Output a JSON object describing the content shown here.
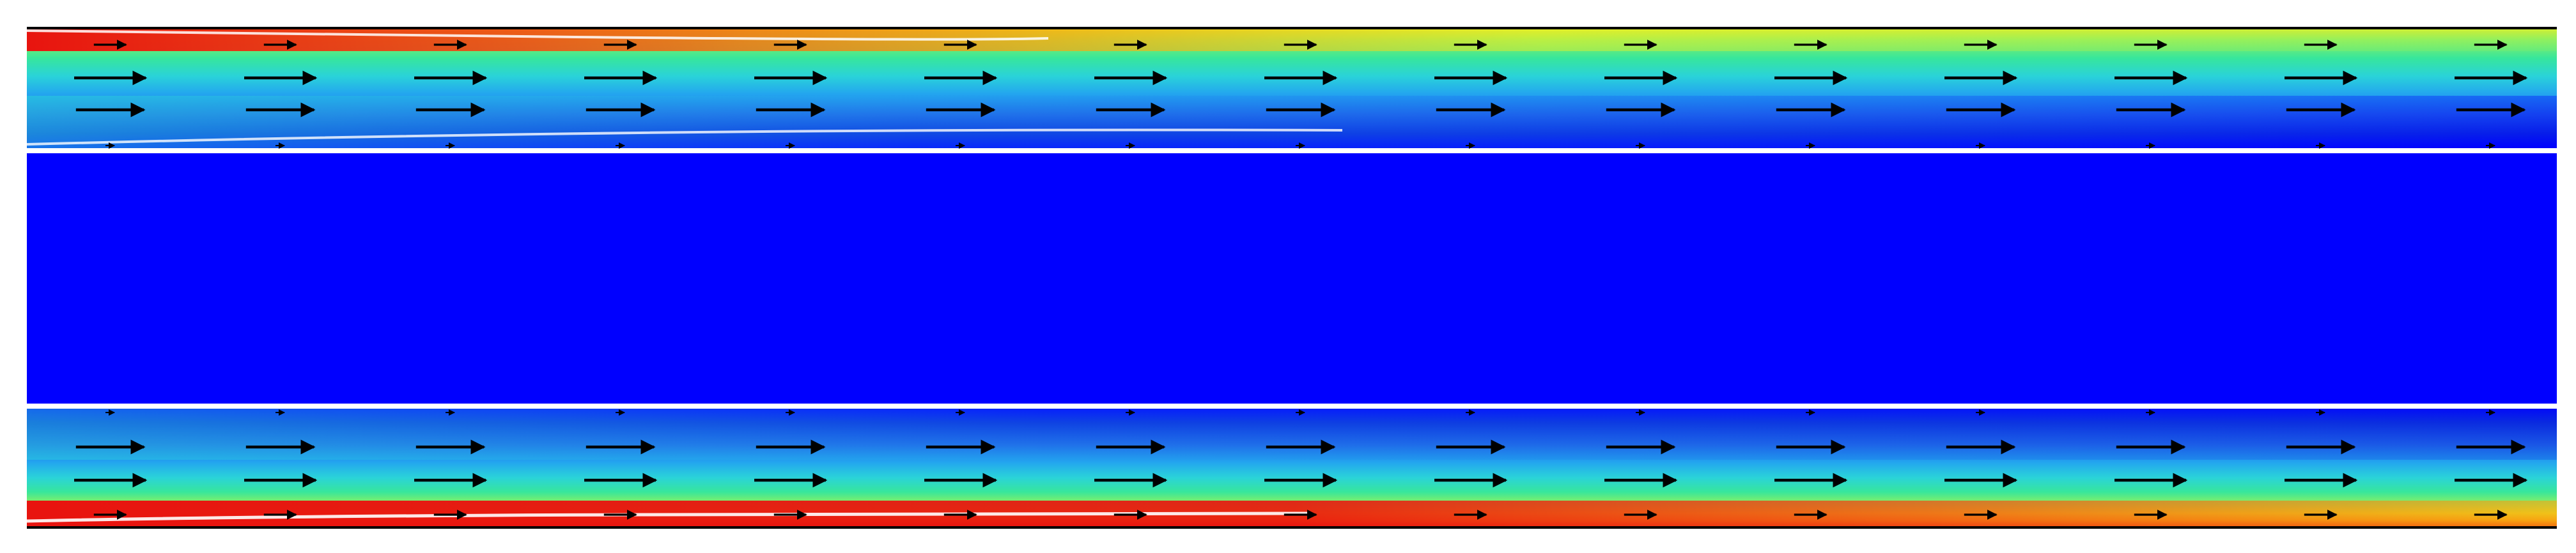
{
  "figure": {
    "kind": "flow-field-contour",
    "colormap": [
      "#0000ff",
      "#0a2bdf",
      "#1f63e8",
      "#23a5ef",
      "#2ad3d9",
      "#37e69c",
      "#8ef060",
      "#e6ee25",
      "#f7a511",
      "#f04e14",
      "#e8140f"
    ],
    "colors": {
      "wall": "#000000",
      "gap": "#ffffff",
      "core": "#0000ff",
      "arrow": "#000000"
    },
    "arrow_direction": "right"
  },
  "chart_data": {
    "type": "vector-field",
    "channels": [
      {
        "name": "top",
        "wall_side": "top",
        "wall_color_trend": [
          "#e8140f",
          "#f7a511",
          "#e6ee25",
          "#8ef060"
        ],
        "arrow_rows": [
          {
            "magnitude": 0.45
          },
          {
            "magnitude": 1.0
          },
          {
            "magnitude": 0.95
          },
          {
            "magnitude": 0.12
          }
        ]
      },
      {
        "name": "bottom",
        "wall_side": "bottom",
        "wall_color_trend": [
          "#e8140f",
          "#e8140f",
          "#f04e14",
          "#f7a511"
        ],
        "arrow_rows": [
          {
            "magnitude": 0.12
          },
          {
            "magnitude": 0.95
          },
          {
            "magnitude": 1.0
          },
          {
            "magnitude": 0.45
          }
        ]
      }
    ],
    "columns": 15,
    "core": {
      "value": 0.0
    }
  }
}
